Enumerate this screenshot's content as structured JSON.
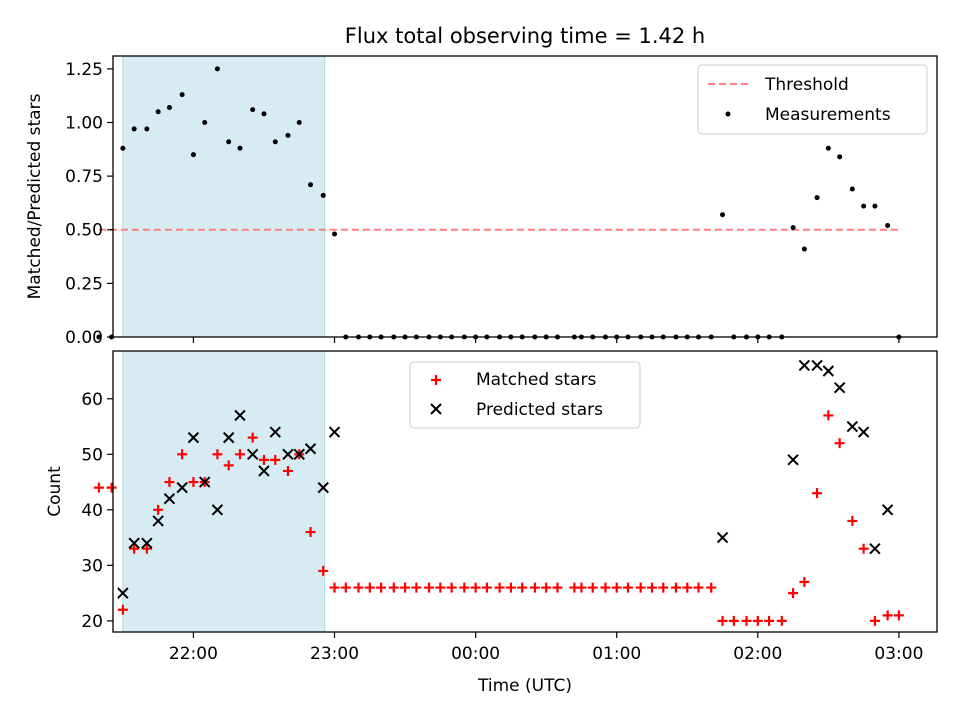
{
  "chart_data": {
    "type": "scatter",
    "title": "Flux total observing time = 1.42 h",
    "xlabel": "Time (UTC)",
    "x_ticks": [
      "22:00",
      "23:00",
      "00:00",
      "01:00",
      "02:00",
      "03:00"
    ],
    "x_tick_hours": [
      22,
      23,
      24,
      25,
      26,
      27
    ],
    "xlim": [
      21.43,
      27.27
    ],
    "highlight_span": {
      "start": 21.5,
      "end": 22.93,
      "color": "#add8e6"
    },
    "panels": [
      {
        "ylabel": "Matched/Predicted stars",
        "ylim": [
          0,
          1.31
        ],
        "y_ticks": [
          0.0,
          0.25,
          0.5,
          0.75,
          1.0,
          1.25
        ],
        "y_tick_labels": [
          "0.00",
          "0.25",
          "0.50",
          "0.75",
          "1.00",
          "1.25"
        ],
        "legend_position": "top-right",
        "series": [
          {
            "name": "Threshold",
            "kind": "dashed-line",
            "color": "#ff7f7f",
            "x": [
              21.33,
              27.0
            ],
            "y": [
              0.5,
              0.5
            ]
          },
          {
            "name": "Measurements",
            "kind": "dot",
            "color": "#000000",
            "x": [
              21.33,
              21.42,
              21.5,
              21.58,
              21.67,
              21.75,
              21.83,
              21.92,
              22.0,
              22.08,
              22.17,
              22.25,
              22.33,
              22.42,
              22.5,
              22.58,
              22.67,
              22.75,
              22.83,
              22.92,
              23.0,
              23.08,
              23.17,
              23.25,
              23.33,
              23.42,
              23.5,
              23.58,
              23.67,
              23.75,
              23.83,
              23.92,
              24.0,
              24.08,
              24.17,
              24.25,
              24.33,
              24.42,
              24.5,
              24.58,
              24.7,
              24.75,
              24.83,
              24.92,
              25.0,
              25.08,
              25.17,
              25.25,
              25.33,
              25.42,
              25.5,
              25.58,
              25.67,
              25.75,
              25.83,
              25.92,
              26.0,
              26.08,
              26.17,
              26.25,
              26.33,
              26.42,
              26.5,
              26.58,
              26.67,
              26.75,
              26.83,
              26.92,
              27.0
            ],
            "y": [
              0,
              0,
              0.88,
              0.97,
              0.97,
              1.05,
              1.07,
              1.13,
              0.85,
              1.0,
              1.25,
              0.91,
              0.88,
              1.06,
              1.04,
              0.91,
              0.94,
              1.0,
              0.71,
              0.66,
              0.48,
              0,
              0,
              0,
              0,
              0,
              0,
              0,
              0,
              0,
              0,
              0,
              0,
              0,
              0,
              0,
              0,
              0,
              0,
              0,
              0,
              0,
              0,
              0,
              0,
              0,
              0,
              0,
              0,
              0,
              0,
              0,
              0,
              0.57,
              0,
              0,
              0,
              0,
              0,
              0.51,
              0.41,
              0.65,
              0.88,
              0.84,
              0.69,
              0.61,
              0.61,
              0.52,
              0
            ]
          }
        ]
      },
      {
        "ylabel": "Count",
        "ylim": [
          18,
          68.6
        ],
        "y_ticks": [
          20,
          30,
          40,
          50,
          60
        ],
        "y_tick_labels": [
          "20",
          "30",
          "40",
          "50",
          "60"
        ],
        "legend_position": "top-center",
        "series": [
          {
            "name": "Matched stars",
            "kind": "plus",
            "color": "#ff0000",
            "x": [
              21.33,
              21.42,
              21.5,
              21.58,
              21.67,
              21.75,
              21.83,
              21.92,
              22.0,
              22.08,
              22.17,
              22.25,
              22.33,
              22.42,
              22.5,
              22.58,
              22.67,
              22.75,
              22.83,
              22.92,
              23.0,
              23.08,
              23.17,
              23.25,
              23.33,
              23.42,
              23.5,
              23.58,
              23.67,
              23.75,
              23.83,
              23.92,
              24.0,
              24.08,
              24.17,
              24.25,
              24.33,
              24.42,
              24.5,
              24.58,
              24.7,
              24.75,
              24.83,
              24.92,
              25.0,
              25.08,
              25.17,
              25.25,
              25.33,
              25.42,
              25.5,
              25.58,
              25.67,
              25.75,
              25.83,
              25.92,
              26.0,
              26.08,
              26.17,
              26.25,
              26.33,
              26.42,
              26.5,
              26.58,
              26.67,
              26.75,
              26.83,
              26.92,
              27.0
            ],
            "y": [
              44,
              44,
              22,
              33,
              33,
              40,
              45,
              50,
              45,
              45,
              50,
              48,
              50,
              53,
              49,
              49,
              47,
              50,
              36,
              29,
              26,
              26,
              26,
              26,
              26,
              26,
              26,
              26,
              26,
              26,
              26,
              26,
              26,
              26,
              26,
              26,
              26,
              26,
              26,
              26,
              26,
              26,
              26,
              26,
              26,
              26,
              26,
              26,
              26,
              26,
              26,
              26,
              26,
              20,
              20,
              20,
              20,
              20,
              20,
              25,
              27,
              43,
              57,
              52,
              38,
              33,
              20,
              21,
              21
            ]
          },
          {
            "name": "Predicted stars",
            "kind": "x",
            "color": "#000000",
            "x": [
              21.5,
              21.58,
              21.67,
              21.75,
              21.83,
              21.92,
              22.0,
              22.08,
              22.17,
              22.25,
              22.33,
              22.42,
              22.5,
              22.58,
              22.67,
              22.75,
              22.83,
              22.92,
              23.0,
              25.75,
              26.25,
              26.33,
              26.42,
              26.5,
              26.58,
              26.67,
              26.75,
              26.83,
              26.92
            ],
            "y": [
              25,
              34,
              34,
              38,
              42,
              44,
              53,
              45,
              40,
              53,
              57,
              50,
              47,
              54,
              50,
              50,
              51,
              44,
              54,
              35,
              49,
              66,
              66,
              65,
              62,
              55,
              54,
              33,
              40
            ]
          }
        ]
      }
    ]
  }
}
